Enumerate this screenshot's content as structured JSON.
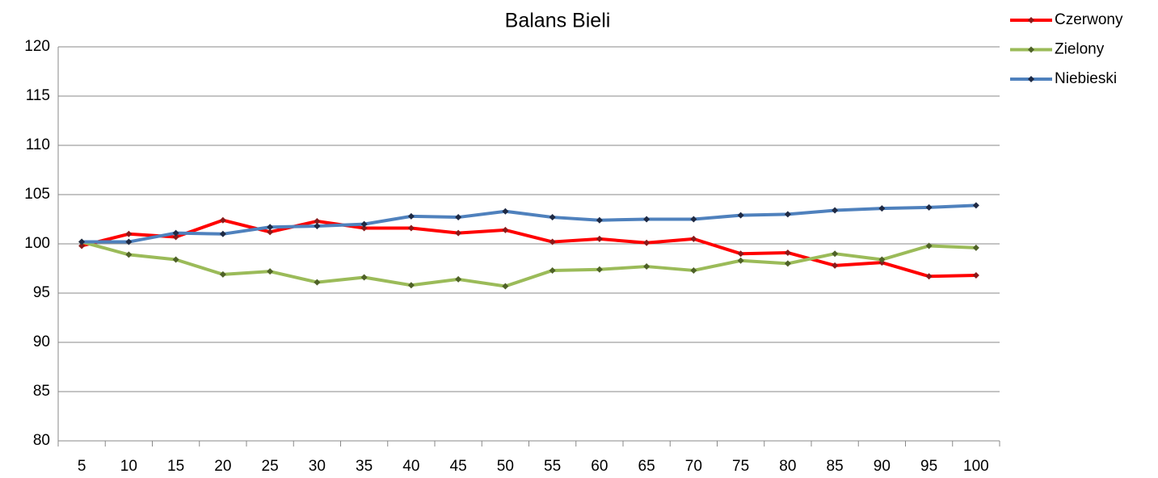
{
  "chart_data": {
    "type": "line",
    "title": "Balans Bieli",
    "categories": [
      5,
      10,
      15,
      20,
      25,
      30,
      35,
      40,
      45,
      50,
      55,
      60,
      65,
      70,
      75,
      80,
      85,
      90,
      95,
      100
    ],
    "series": [
      {
        "name": "Czerwony",
        "color": "#ff0000",
        "marker_color": "#8b1a1a",
        "values": [
          99.8,
          101.0,
          100.7,
          102.4,
          101.2,
          102.3,
          101.6,
          101.6,
          101.1,
          101.4,
          100.2,
          100.5,
          100.1,
          100.5,
          99.0,
          99.1,
          97.8,
          98.1,
          96.7,
          96.8
        ]
      },
      {
        "name": "Zielony",
        "color": "#9bbb59",
        "marker_color": "#4f6228",
        "values": [
          100.2,
          98.9,
          98.4,
          96.9,
          97.2,
          96.1,
          96.6,
          95.8,
          96.4,
          95.7,
          97.3,
          97.4,
          97.7,
          97.3,
          98.3,
          98.0,
          99.0,
          98.4,
          99.8,
          99.6
        ]
      },
      {
        "name": "Niebieski",
        "color": "#4f81bd",
        "marker_color": "#1f2a44",
        "values": [
          100.2,
          100.2,
          101.1,
          101.0,
          101.7,
          101.8,
          102.0,
          102.8,
          102.7,
          103.3,
          102.7,
          102.4,
          102.5,
          102.5,
          102.9,
          103.0,
          103.4,
          103.6,
          103.7,
          103.9
        ]
      }
    ],
    "ylim": [
      80,
      120
    ],
    "yticks": [
      80,
      85,
      90,
      95,
      100,
      105,
      110,
      115,
      120
    ],
    "grid": true,
    "legend": "top-right"
  }
}
